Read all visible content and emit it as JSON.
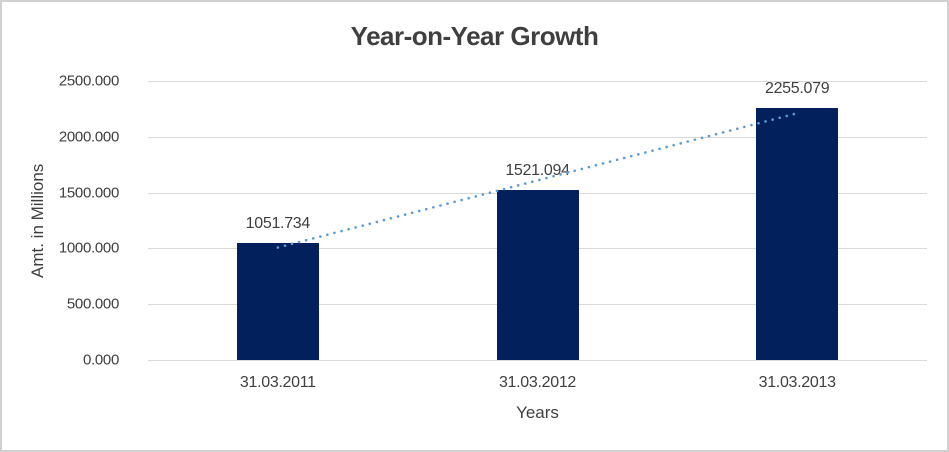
{
  "chart": {
    "title": "Year-on-Year Growth",
    "y_axis_title": "Amt. in Millions",
    "x_axis_title": "Years"
  },
  "chart_data": {
    "type": "bar",
    "title": "Year-on-Year Growth",
    "xlabel": "Years",
    "ylabel": "Amt. in Millions",
    "categories": [
      "31.03.2011",
      "31.03.2012",
      "31.03.2013"
    ],
    "values": [
      1051.734,
      1521.094,
      2255.079
    ],
    "value_labels": [
      "1051.734",
      "1521.094",
      "2255.079"
    ],
    "y_ticks": [
      0,
      500,
      1000,
      1500,
      2000,
      2500
    ],
    "y_tick_labels": [
      "0.000",
      "500.000",
      "1000.000",
      "1500.000",
      "2000.000",
      "2500.000"
    ],
    "ylim": [
      0,
      2500
    ],
    "grid": true,
    "legend_position": "none",
    "trendline": {
      "type": "linear",
      "style": "dotted",
      "color": "#5b9bd5"
    },
    "colors": {
      "bar": "#02215c",
      "trendline": "#5b9bd5",
      "gridline": "#d9d9d9",
      "text": "#404040",
      "title_text": "#3f3f3f",
      "border": "#d0d0d0"
    }
  }
}
